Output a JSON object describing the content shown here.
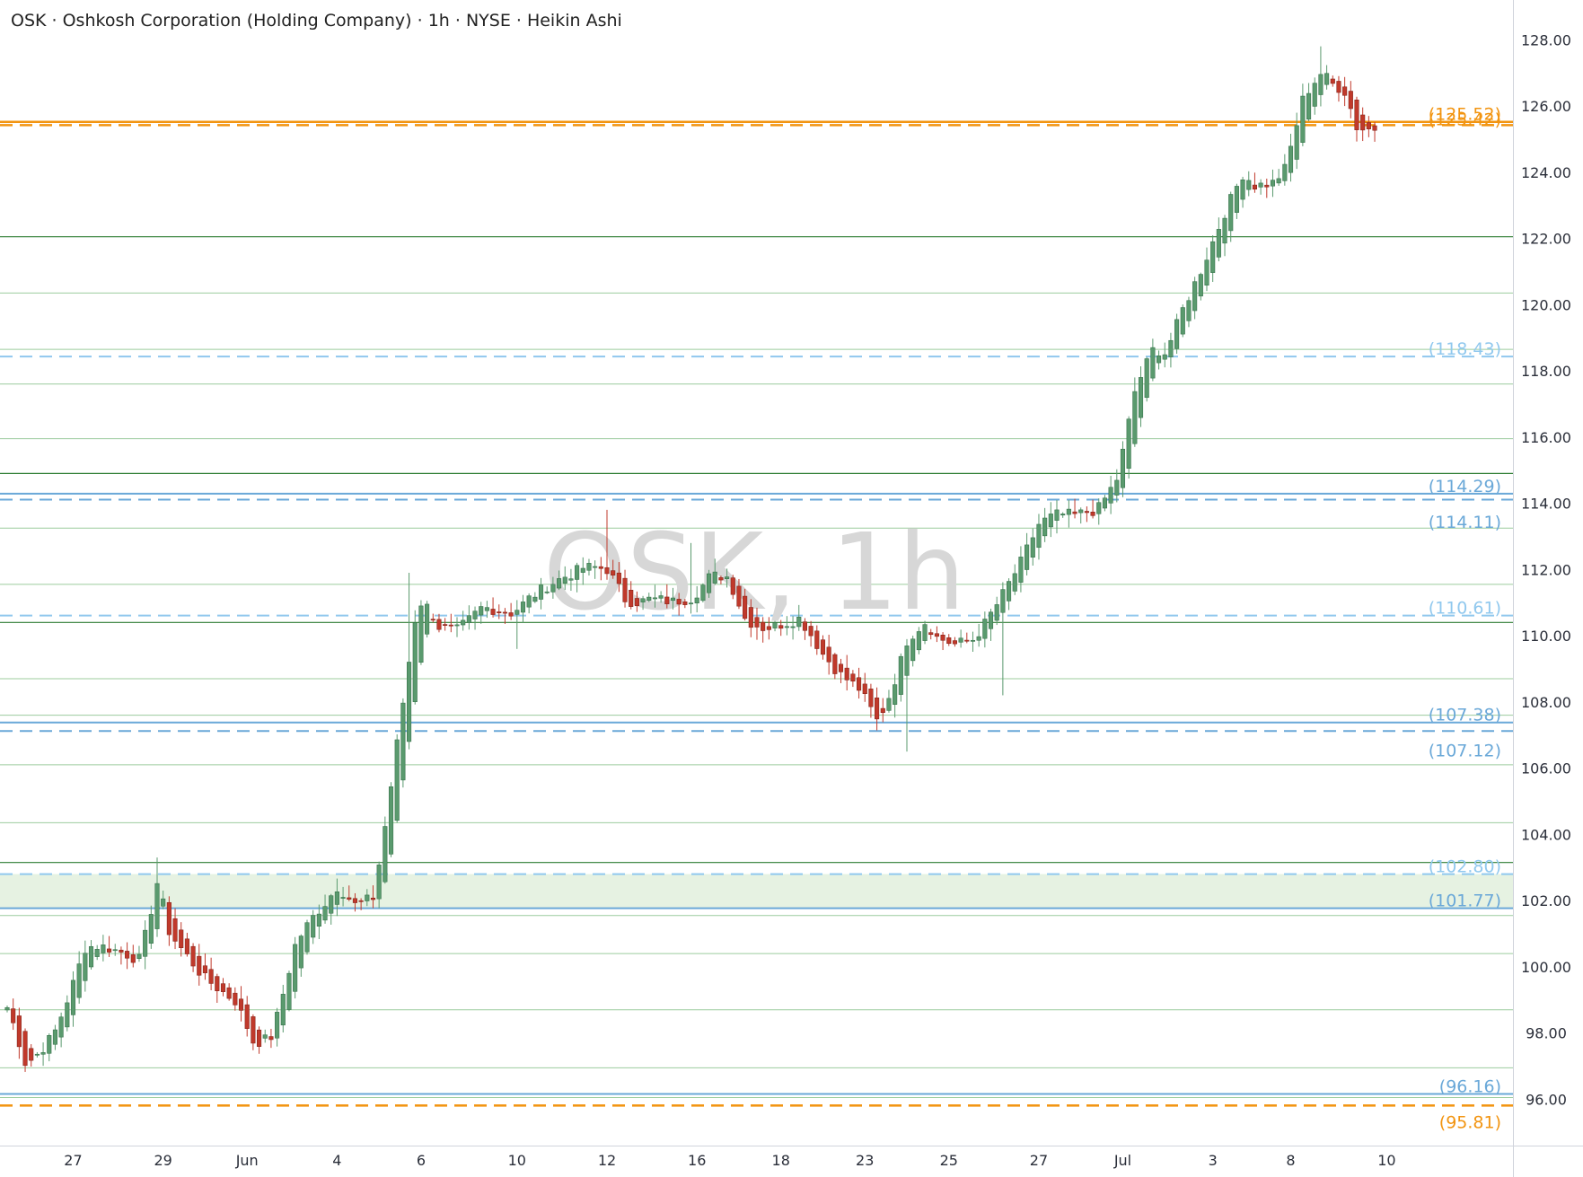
{
  "header": {
    "title": "OSK · Oshkosh Corporation (Holding Company) · 1h · NYSE · Heikin Ashi"
  },
  "watermark": "OSK, 1h",
  "colors": {
    "up": "#5a9a6e",
    "down": "#c0392b",
    "orange": "#f29410",
    "blue_level": "#90c8ee",
    "blue_solid": "#6aa8d8",
    "green_line": "#2e7d32",
    "green_thin": "#9ccc9e",
    "zone": "#e6f2e2"
  },
  "chart_data": {
    "type": "candlestick",
    "title": "OSK · Oshkosh Corporation (Holding Company) · 1h · NYSE · Heikin Ashi",
    "ylim": [
      94.6,
      129.2
    ],
    "y_ticks": [
      "128.00",
      "126.00",
      "124.00",
      "122.00",
      "120.00",
      "118.00",
      "116.00",
      "114.00",
      "112.00",
      "110.00",
      "108.00",
      "106.00",
      "104.00",
      "102.00",
      "100.00",
      "98.00",
      "96.00"
    ],
    "x_ticks": [
      {
        "label": "27",
        "bar": 11
      },
      {
        "label": "29",
        "bar": 26
      },
      {
        "label": "Jun",
        "bar": 40
      },
      {
        "label": "4",
        "bar": 55
      },
      {
        "label": "6",
        "bar": 69
      },
      {
        "label": "10",
        "bar": 85
      },
      {
        "label": "12",
        "bar": 100
      },
      {
        "label": "16",
        "bar": 115
      },
      {
        "label": "18",
        "bar": 129
      },
      {
        "label": "23",
        "bar": 143
      },
      {
        "label": "25",
        "bar": 157
      },
      {
        "label": "27",
        "bar": 172
      },
      {
        "label": "Jul",
        "bar": 186
      },
      {
        "label": "3",
        "bar": 201
      },
      {
        "label": "8",
        "bar": 214
      },
      {
        "label": "10",
        "bar": 230
      }
    ],
    "levels": [
      {
        "value": 125.52,
        "label": "(125.52)",
        "color": "#f29410",
        "style": "solid",
        "width": 2.5
      },
      {
        "value": 125.42,
        "label": "(125.42)",
        "color": "#f29410",
        "style": "dashed",
        "width": 2.5
      },
      {
        "value": 118.43,
        "label": "(118.43)",
        "color": "#90c8ee",
        "style": "dashed",
        "width": 2
      },
      {
        "value": 114.29,
        "label": "(114.29)",
        "color": "#6aa8d8",
        "style": "solid",
        "width": 2
      },
      {
        "value": 114.11,
        "label": "(114.11)",
        "color": "#6aa8d8",
        "style": "dashed",
        "width": 2
      },
      {
        "value": 110.61,
        "label": "(110.61)",
        "color": "#90c8ee",
        "style": "dashed",
        "width": 2
      },
      {
        "value": 107.38,
        "label": "(107.38)",
        "color": "#6aa8d8",
        "style": "solid",
        "width": 2
      },
      {
        "value": 107.12,
        "label": "(107.12)",
        "color": "#6aa8d8",
        "style": "dashed",
        "width": 2
      },
      {
        "value": 102.8,
        "label": "(102.80)",
        "color": "#90c8ee",
        "style": "dashed",
        "width": 2
      },
      {
        "value": 101.77,
        "label": "(101.77)",
        "color": "#6aa8d8",
        "style": "solid",
        "width": 2
      },
      {
        "value": 96.16,
        "label": "(96.16)",
        "color": "#6aa8d8",
        "style": "solid",
        "width": 2
      },
      {
        "value": 95.81,
        "label": "(95.81)",
        "color": "#f29410",
        "style": "dashed",
        "width": 2.5
      }
    ],
    "zone": [
      101.77,
      102.8
    ],
    "green_lines_dark": [
      122.05,
      114.9,
      110.4,
      103.15
    ],
    "green_lines_light": [
      120.35,
      118.65,
      117.6,
      115.95,
      113.25,
      111.55,
      108.7,
      107.6,
      106.1,
      104.35,
      101.55,
      100.4,
      98.7,
      96.95,
      96.05
    ],
    "candle_anchors": [
      [
        0,
        98.8
      ],
      [
        3,
        96.8
      ],
      [
        8,
        98.2
      ],
      [
        11,
        99.8
      ],
      [
        13,
        100.9
      ],
      [
        18,
        100.5
      ],
      [
        22,
        100.2
      ],
      [
        25,
        103.0
      ],
      [
        27,
        100.8
      ],
      [
        33,
        99.5
      ],
      [
        38,
        98.9
      ],
      [
        41,
        97.5
      ],
      [
        44,
        97.9
      ],
      [
        48,
        101.1
      ],
      [
        53,
        102.1
      ],
      [
        55,
        102.6
      ],
      [
        58,
        101.8
      ],
      [
        61,
        102.1
      ],
      [
        65,
        107.5
      ],
      [
        68,
        111.3
      ],
      [
        69,
        111.6
      ],
      [
        72,
        110.2
      ],
      [
        75,
        110.1
      ],
      [
        79,
        110.9
      ],
      [
        84,
        110.7
      ],
      [
        87,
        111.2
      ],
      [
        91,
        111.7
      ],
      [
        96,
        112.1
      ],
      [
        100,
        112.0
      ],
      [
        103,
        110.9
      ],
      [
        107,
        111.1
      ],
      [
        111,
        111.0
      ],
      [
        114,
        111.2
      ],
      [
        117,
        111.9
      ],
      [
        120,
        111.8
      ],
      [
        123,
        110.3
      ],
      [
        126,
        110.2
      ],
      [
        128,
        110.3
      ],
      [
        132,
        110.6
      ],
      [
        136,
        109.3
      ],
      [
        139,
        108.7
      ],
      [
        142,
        108.3
      ],
      [
        145,
        107.2
      ],
      [
        147,
        108.3
      ],
      [
        150,
        110.2
      ],
      [
        153,
        110.6
      ],
      [
        155,
        109.9
      ],
      [
        158,
        109.7
      ],
      [
        161,
        109.9
      ],
      [
        165,
        111.1
      ],
      [
        169,
        112.4
      ],
      [
        172,
        113.6
      ],
      [
        175,
        113.7
      ],
      [
        178,
        113.6
      ],
      [
        181,
        113.8
      ],
      [
        182,
        113.9
      ],
      [
        185,
        114.9
      ],
      [
        188,
        117.9
      ],
      [
        191,
        118.9
      ],
      [
        193,
        118.6
      ],
      [
        196,
        120.1
      ],
      [
        199,
        121.3
      ],
      [
        203,
        123.1
      ],
      [
        206,
        124.2
      ],
      [
        208,
        123.6
      ],
      [
        211,
        123.7
      ],
      [
        213,
        124.2
      ],
      [
        216,
        126.6
      ],
      [
        219,
        127.2
      ],
      [
        221,
        126.6
      ],
      [
        223,
        126.4
      ],
      [
        225,
        125.1
      ],
      [
        228,
        125.3
      ]
    ],
    "spikes": [
      [
        25,
        103.3
      ],
      [
        67,
        111.9
      ],
      [
        85,
        109.6
      ],
      [
        100,
        113.8
      ],
      [
        114,
        112.8
      ],
      [
        150,
        106.5
      ],
      [
        166,
        108.2
      ],
      [
        188,
        117.8
      ],
      [
        219,
        127.8
      ]
    ]
  }
}
